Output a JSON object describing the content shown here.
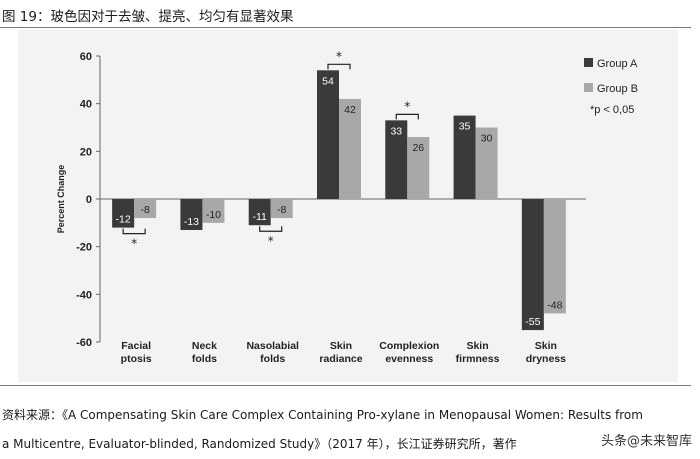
{
  "figure": {
    "title": "图 19：玻色因对于去皱、提亮、均匀有显著效果"
  },
  "chart_data": {
    "type": "bar",
    "categories": [
      [
        "Facial",
        "ptosis"
      ],
      [
        "Neck",
        "folds"
      ],
      [
        "Nasolabial",
        "folds"
      ],
      [
        "Skin",
        "radiance"
      ],
      [
        "Complexion",
        "evenness"
      ],
      [
        "Skin",
        "firmness"
      ],
      [
        "Skin",
        "dryness"
      ]
    ],
    "series": [
      {
        "name": "Group A",
        "color": "#3a3a3a",
        "values": [
          -12,
          -13,
          -11,
          54,
          33,
          35,
          -55
        ]
      },
      {
        "name": "Group B",
        "color": "#a8a8a8",
        "values": [
          -8,
          -10,
          -8,
          42,
          26,
          30,
          -48
        ]
      }
    ],
    "ylabel": "Percent Change",
    "ylim": [
      -60,
      60
    ],
    "yticks": [
      60,
      40,
      20,
      0,
      -20,
      -40,
      -60
    ],
    "legend_note": "*p < 0,05",
    "significance": [
      {
        "category_index": 0,
        "position": "below",
        "mark": "*"
      },
      {
        "category_index": 2,
        "position": "below",
        "mark": "*"
      },
      {
        "category_index": 3,
        "position": "above",
        "mark": "*"
      },
      {
        "category_index": 4,
        "position": "above",
        "mark": "*"
      }
    ]
  },
  "source": {
    "line1": "资料来源：《A Compensating Skin Care Complex Containing Pro-xylane in Menopausal Women: Results from",
    "line2": "a Multicentre, Evaluator-blinded, Randomized Study》（2017 年），长江证券研究所，著作"
  },
  "watermark": "头条@未来智库"
}
